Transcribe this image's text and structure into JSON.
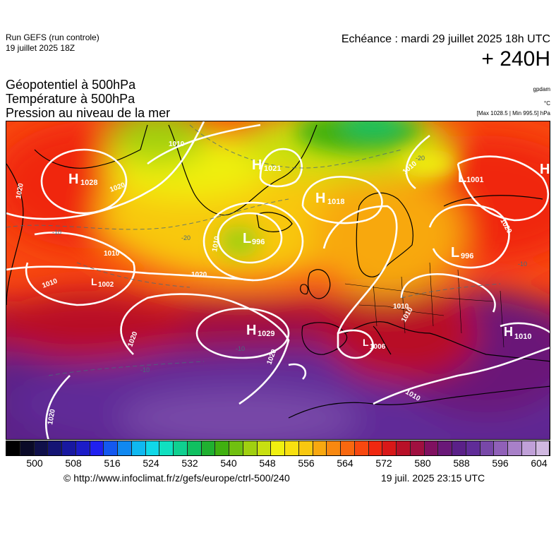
{
  "header": {
    "run_label": "Run GEFS (run controle)",
    "run_date": "19 juillet 2025 18Z",
    "valid_time": "Echéance : mardi 29 juillet 2025 18h UTC",
    "lead_time": "+ 240H"
  },
  "titles": [
    "Géopotentiel à 500hPa",
    "Température à 500hPa",
    "Pression au niveau de la mer"
  ],
  "units": {
    "geopotential": "gpdam",
    "temperature": "°C",
    "max_min": "[Max 1028.5 | Min 995.5] hPa"
  },
  "colors": {
    "scale": [
      "#000000",
      "#0a0a28",
      "#10104a",
      "#141474",
      "#1818a0",
      "#1c1cc8",
      "#2020f0",
      "#1458f0",
      "#1088f0",
      "#10b8f0",
      "#10d8e8",
      "#10e0c0",
      "#10d090",
      "#10c060",
      "#20b030",
      "#40b010",
      "#70c010",
      "#a0d010",
      "#c8e010",
      "#f0f010",
      "#f8e010",
      "#f8c810",
      "#f8a810",
      "#f88810",
      "#f86810",
      "#f84810",
      "#f02810",
      "#d81818",
      "#b81028",
      "#a01040",
      "#801060",
      "#6a1878",
      "#5a2088",
      "#602c98",
      "#7848a8",
      "#9060b8",
      "#a880c8",
      "#c0a0d8",
      "#d0b8e0"
    ]
  },
  "colorbar": {
    "labels": [
      "500",
      "508",
      "516",
      "524",
      "532",
      "540",
      "548",
      "556",
      "564",
      "572",
      "580",
      "588",
      "596",
      "604"
    ]
  },
  "pressure_centers": [
    {
      "type": "H",
      "value": "1028"
    },
    {
      "type": "H",
      "value": "1021"
    },
    {
      "type": "H",
      "value": "1018"
    },
    {
      "type": "L",
      "value": "996"
    },
    {
      "type": "L",
      "value": "1001"
    },
    {
      "type": "L",
      "value": "996"
    },
    {
      "type": "L",
      "value": "1002"
    },
    {
      "type": "H",
      "value": "1029"
    },
    {
      "type": "L",
      "value": "1006"
    },
    {
      "type": "H",
      "value": "1010"
    },
    {
      "type": "H",
      "value": ""
    }
  ],
  "isobar_labels": [
    "1020",
    "1020",
    "1010",
    "1020",
    "1020",
    "1010",
    "1020",
    "1020",
    "1010",
    "1010",
    "1010",
    "1020",
    "1010",
    "1010",
    "1010"
  ],
  "isotherm_labels": [
    "-10",
    "-20",
    "-20",
    "-10",
    "-10",
    "-10"
  ],
  "footer": {
    "source_url": "© http://www.infoclimat.fr/z/gefs/europe/ctrl-500/240",
    "generated": "19 juil. 2025 23:15 UTC"
  }
}
